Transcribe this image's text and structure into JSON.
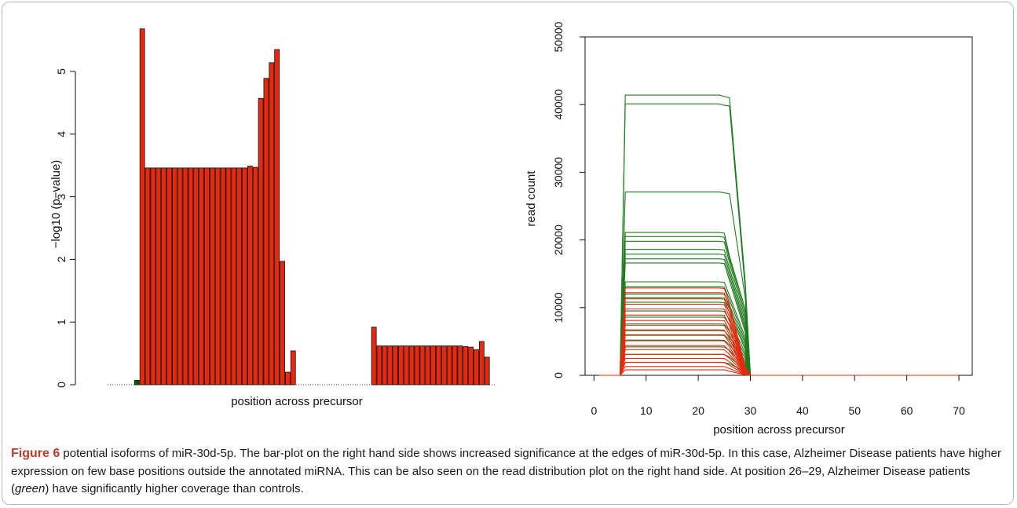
{
  "colors": {
    "red": "#e8280f",
    "green": "#1f7a1f",
    "dark_green": "#0a5a0a",
    "baseline": "#2b2bd6",
    "caption_label": "#c0392b"
  },
  "chart_data": [
    {
      "type": "bar",
      "title": "",
      "xlabel": "position across precursor",
      "ylabel": "−log10 (p−value)",
      "ylim": [
        0,
        5.8
      ],
      "yticks": [
        "0",
        "1",
        "2",
        "3",
        "4",
        "5"
      ],
      "grid": false,
      "bars": [
        {
          "position": 1,
          "value": 0.0,
          "group": "none"
        },
        {
          "position": 2,
          "value": 0.0,
          "group": "none"
        },
        {
          "position": 3,
          "value": 0.0,
          "group": "none"
        },
        {
          "position": 4,
          "value": 0.0,
          "group": "none"
        },
        {
          "position": 5,
          "value": 0.0,
          "group": "none"
        },
        {
          "position": 6,
          "value": 0.07,
          "group": "green"
        },
        {
          "position": 7,
          "value": 5.68,
          "group": "red"
        },
        {
          "position": 8,
          "value": 3.46,
          "group": "red"
        },
        {
          "position": 9,
          "value": 3.46,
          "group": "red"
        },
        {
          "position": 10,
          "value": 3.46,
          "group": "red"
        },
        {
          "position": 11,
          "value": 3.46,
          "group": "red"
        },
        {
          "position": 12,
          "value": 3.46,
          "group": "red"
        },
        {
          "position": 13,
          "value": 3.46,
          "group": "red"
        },
        {
          "position": 14,
          "value": 3.46,
          "group": "red"
        },
        {
          "position": 15,
          "value": 3.46,
          "group": "red"
        },
        {
          "position": 16,
          "value": 3.46,
          "group": "red"
        },
        {
          "position": 17,
          "value": 3.46,
          "group": "red"
        },
        {
          "position": 18,
          "value": 3.46,
          "group": "red"
        },
        {
          "position": 19,
          "value": 3.46,
          "group": "red"
        },
        {
          "position": 20,
          "value": 3.46,
          "group": "red"
        },
        {
          "position": 21,
          "value": 3.46,
          "group": "red"
        },
        {
          "position": 22,
          "value": 3.46,
          "group": "red"
        },
        {
          "position": 23,
          "value": 3.46,
          "group": "red"
        },
        {
          "position": 24,
          "value": 3.46,
          "group": "red"
        },
        {
          "position": 25,
          "value": 3.46,
          "group": "red"
        },
        {
          "position": 26,
          "value": 3.46,
          "group": "red"
        },
        {
          "position": 27,
          "value": 3.49,
          "group": "red"
        },
        {
          "position": 28,
          "value": 3.47,
          "group": "red"
        },
        {
          "position": 29,
          "value": 4.57,
          "group": "red"
        },
        {
          "position": 30,
          "value": 4.89,
          "group": "red"
        },
        {
          "position": 31,
          "value": 5.14,
          "group": "red"
        },
        {
          "position": 32,
          "value": 5.35,
          "group": "red"
        },
        {
          "position": 33,
          "value": 1.97,
          "group": "red"
        },
        {
          "position": 34,
          "value": 0.2,
          "group": "red"
        },
        {
          "position": 35,
          "value": 0.54,
          "group": "red"
        },
        {
          "position": 36,
          "value": 0.0,
          "group": "none"
        },
        {
          "position": 37,
          "value": 0.0,
          "group": "none"
        },
        {
          "position": 38,
          "value": 0.0,
          "group": "none"
        },
        {
          "position": 39,
          "value": 0.0,
          "group": "none"
        },
        {
          "position": 40,
          "value": 0.0,
          "group": "none"
        },
        {
          "position": 41,
          "value": 0.0,
          "group": "none"
        },
        {
          "position": 42,
          "value": 0.0,
          "group": "none"
        },
        {
          "position": 43,
          "value": 0.0,
          "group": "none"
        },
        {
          "position": 44,
          "value": 0.0,
          "group": "none"
        },
        {
          "position": 45,
          "value": 0.0,
          "group": "none"
        },
        {
          "position": 46,
          "value": 0.0,
          "group": "none"
        },
        {
          "position": 47,
          "value": 0.0,
          "group": "none"
        },
        {
          "position": 48,
          "value": 0.0,
          "group": "none"
        },
        {
          "position": 49,
          "value": 0.0,
          "group": "none"
        },
        {
          "position": 50,
          "value": 0.92,
          "group": "red"
        },
        {
          "position": 51,
          "value": 0.62,
          "group": "red"
        },
        {
          "position": 52,
          "value": 0.62,
          "group": "red"
        },
        {
          "position": 53,
          "value": 0.62,
          "group": "red"
        },
        {
          "position": 54,
          "value": 0.62,
          "group": "red"
        },
        {
          "position": 55,
          "value": 0.62,
          "group": "red"
        },
        {
          "position": 56,
          "value": 0.62,
          "group": "red"
        },
        {
          "position": 57,
          "value": 0.62,
          "group": "red"
        },
        {
          "position": 58,
          "value": 0.62,
          "group": "red"
        },
        {
          "position": 59,
          "value": 0.62,
          "group": "red"
        },
        {
          "position": 60,
          "value": 0.62,
          "group": "red"
        },
        {
          "position": 61,
          "value": 0.62,
          "group": "red"
        },
        {
          "position": 62,
          "value": 0.62,
          "group": "red"
        },
        {
          "position": 63,
          "value": 0.62,
          "group": "red"
        },
        {
          "position": 64,
          "value": 0.62,
          "group": "red"
        },
        {
          "position": 65,
          "value": 0.62,
          "group": "red"
        },
        {
          "position": 66,
          "value": 0.62,
          "group": "red"
        },
        {
          "position": 67,
          "value": 0.61,
          "group": "red"
        },
        {
          "position": 68,
          "value": 0.6,
          "group": "red"
        },
        {
          "position": 69,
          "value": 0.56,
          "group": "red"
        },
        {
          "position": 70,
          "value": 0.69,
          "group": "red"
        },
        {
          "position": 71,
          "value": 0.44,
          "group": "red"
        }
      ]
    },
    {
      "type": "line",
      "title": "",
      "xlabel": "position across precursor",
      "ylabel": "read count",
      "xlim": [
        0,
        72
      ],
      "ylim": [
        0,
        50000
      ],
      "xticks": [
        "0",
        "10",
        "20",
        "30",
        "40",
        "50",
        "60",
        "70"
      ],
      "yticks": [
        "0",
        "10000",
        "20000",
        "30000",
        "40000",
        "50000"
      ],
      "grid": false,
      "series": [
        {
          "group": "green",
          "plateau": 41400,
          "drop_26": 41000,
          "tail_29": 13900
        },
        {
          "group": "green",
          "plateau": 40100,
          "drop_26": 39800,
          "tail_29": 12800
        },
        {
          "group": "green",
          "plateau": 27100,
          "drop_26": 26800,
          "tail_29": 11500
        },
        {
          "group": "green",
          "plateau": 21100,
          "drop_26": 17600,
          "tail_29": 9800
        },
        {
          "group": "green",
          "plateau": 20500,
          "drop_26": 17200,
          "tail_29": 9200
        },
        {
          "group": "green",
          "plateau": 19800,
          "drop_26": 16600,
          "tail_29": 8600
        },
        {
          "group": "green",
          "plateau": 18600,
          "drop_26": 15800,
          "tail_29": 8000
        },
        {
          "group": "green",
          "plateau": 17900,
          "drop_26": 15200,
          "tail_29": 7400
        },
        {
          "group": "green",
          "plateau": 17200,
          "drop_26": 14600,
          "tail_29": 6900
        },
        {
          "group": "green",
          "plateau": 16600,
          "drop_26": 14000,
          "tail_29": 6400
        },
        {
          "group": "green",
          "plateau": 13800,
          "drop_26": 11800,
          "tail_29": 5600
        },
        {
          "group": "green",
          "plateau": 13100,
          "drop_26": 11200,
          "tail_29": 5100
        },
        {
          "group": "green",
          "plateau": 12000,
          "drop_26": 10400,
          "tail_29": 4700
        },
        {
          "group": "green",
          "plateau": 11500,
          "drop_26": 9800,
          "tail_29": 4200
        },
        {
          "group": "green",
          "plateau": 10800,
          "drop_26": 9300,
          "tail_29": 3800
        },
        {
          "group": "green",
          "plateau": 9500,
          "drop_26": 8200,
          "tail_29": 3300
        },
        {
          "group": "green",
          "plateau": 8600,
          "drop_26": 7400,
          "tail_29": 2900
        },
        {
          "group": "green",
          "plateau": 7600,
          "drop_26": 6500,
          "tail_29": 2500
        },
        {
          "group": "green",
          "plateau": 6600,
          "drop_26": 5700,
          "tail_29": 2100
        },
        {
          "group": "green",
          "plateau": 6000,
          "drop_26": 5200,
          "tail_29": 1800
        },
        {
          "group": "green",
          "plateau": 5200,
          "drop_26": 4500,
          "tail_29": 1500
        },
        {
          "group": "green",
          "plateau": 4200,
          "drop_26": 3700,
          "tail_29": 1100
        },
        {
          "group": "green",
          "plateau": 3100,
          "drop_26": 2700,
          "tail_29": 800
        },
        {
          "group": "green",
          "plateau": 1900,
          "drop_26": 1700,
          "tail_29": 500
        },
        {
          "group": "red",
          "plateau": 12900,
          "drop_26": 10600,
          "tail_29": 1200
        },
        {
          "group": "red",
          "plateau": 12200,
          "drop_26": 10000,
          "tail_29": 1000
        },
        {
          "group": "red",
          "plateau": 11300,
          "drop_26": 9200,
          "tail_29": 900
        },
        {
          "group": "red",
          "plateau": 10500,
          "drop_26": 8600,
          "tail_29": 800
        },
        {
          "group": "red",
          "plateau": 9800,
          "drop_26": 8000,
          "tail_29": 700
        },
        {
          "group": "red",
          "plateau": 8900,
          "drop_26": 7300,
          "tail_29": 600
        },
        {
          "group": "red",
          "plateau": 8100,
          "drop_26": 6600,
          "tail_29": 500
        },
        {
          "group": "red",
          "plateau": 7400,
          "drop_26": 6000,
          "tail_29": 450
        },
        {
          "group": "red",
          "plateau": 6700,
          "drop_26": 5400,
          "tail_29": 400
        },
        {
          "group": "red",
          "plateau": 5900,
          "drop_26": 4800,
          "tail_29": 350
        },
        {
          "group": "red",
          "plateau": 5100,
          "drop_26": 4200,
          "tail_29": 300
        },
        {
          "group": "red",
          "plateau": 4400,
          "drop_26": 3600,
          "tail_29": 250
        },
        {
          "group": "red",
          "plateau": 3800,
          "drop_26": 3100,
          "tail_29": 200
        },
        {
          "group": "red",
          "plateau": 3100,
          "drop_26": 2500,
          "tail_29": 150
        },
        {
          "group": "red",
          "plateau": 2500,
          "drop_26": 2000,
          "tail_29": 120
        },
        {
          "group": "red",
          "plateau": 1900,
          "drop_26": 1500,
          "tail_29": 100
        },
        {
          "group": "red",
          "plateau": 1300,
          "drop_26": 1000,
          "tail_29": 80
        },
        {
          "group": "red",
          "plateau": 800,
          "drop_26": 600,
          "tail_29": 60
        }
      ]
    }
  ],
  "caption": {
    "label": "Figure 6",
    "text_a": "  potential isoforms of miR-30d-5p. The bar-plot on the right hand side shows increased significance at the edges of miR-30d-5p. In this case, Alzheimer Disease patients have higher expression on few base positions outside the annotated miRNA. This can be also seen on the read distribution plot on the right hand side. At position 26–29, Alzheimer Disease patients (",
    "emph": "green",
    "text_b": ") have significantly higher coverage than controls."
  }
}
